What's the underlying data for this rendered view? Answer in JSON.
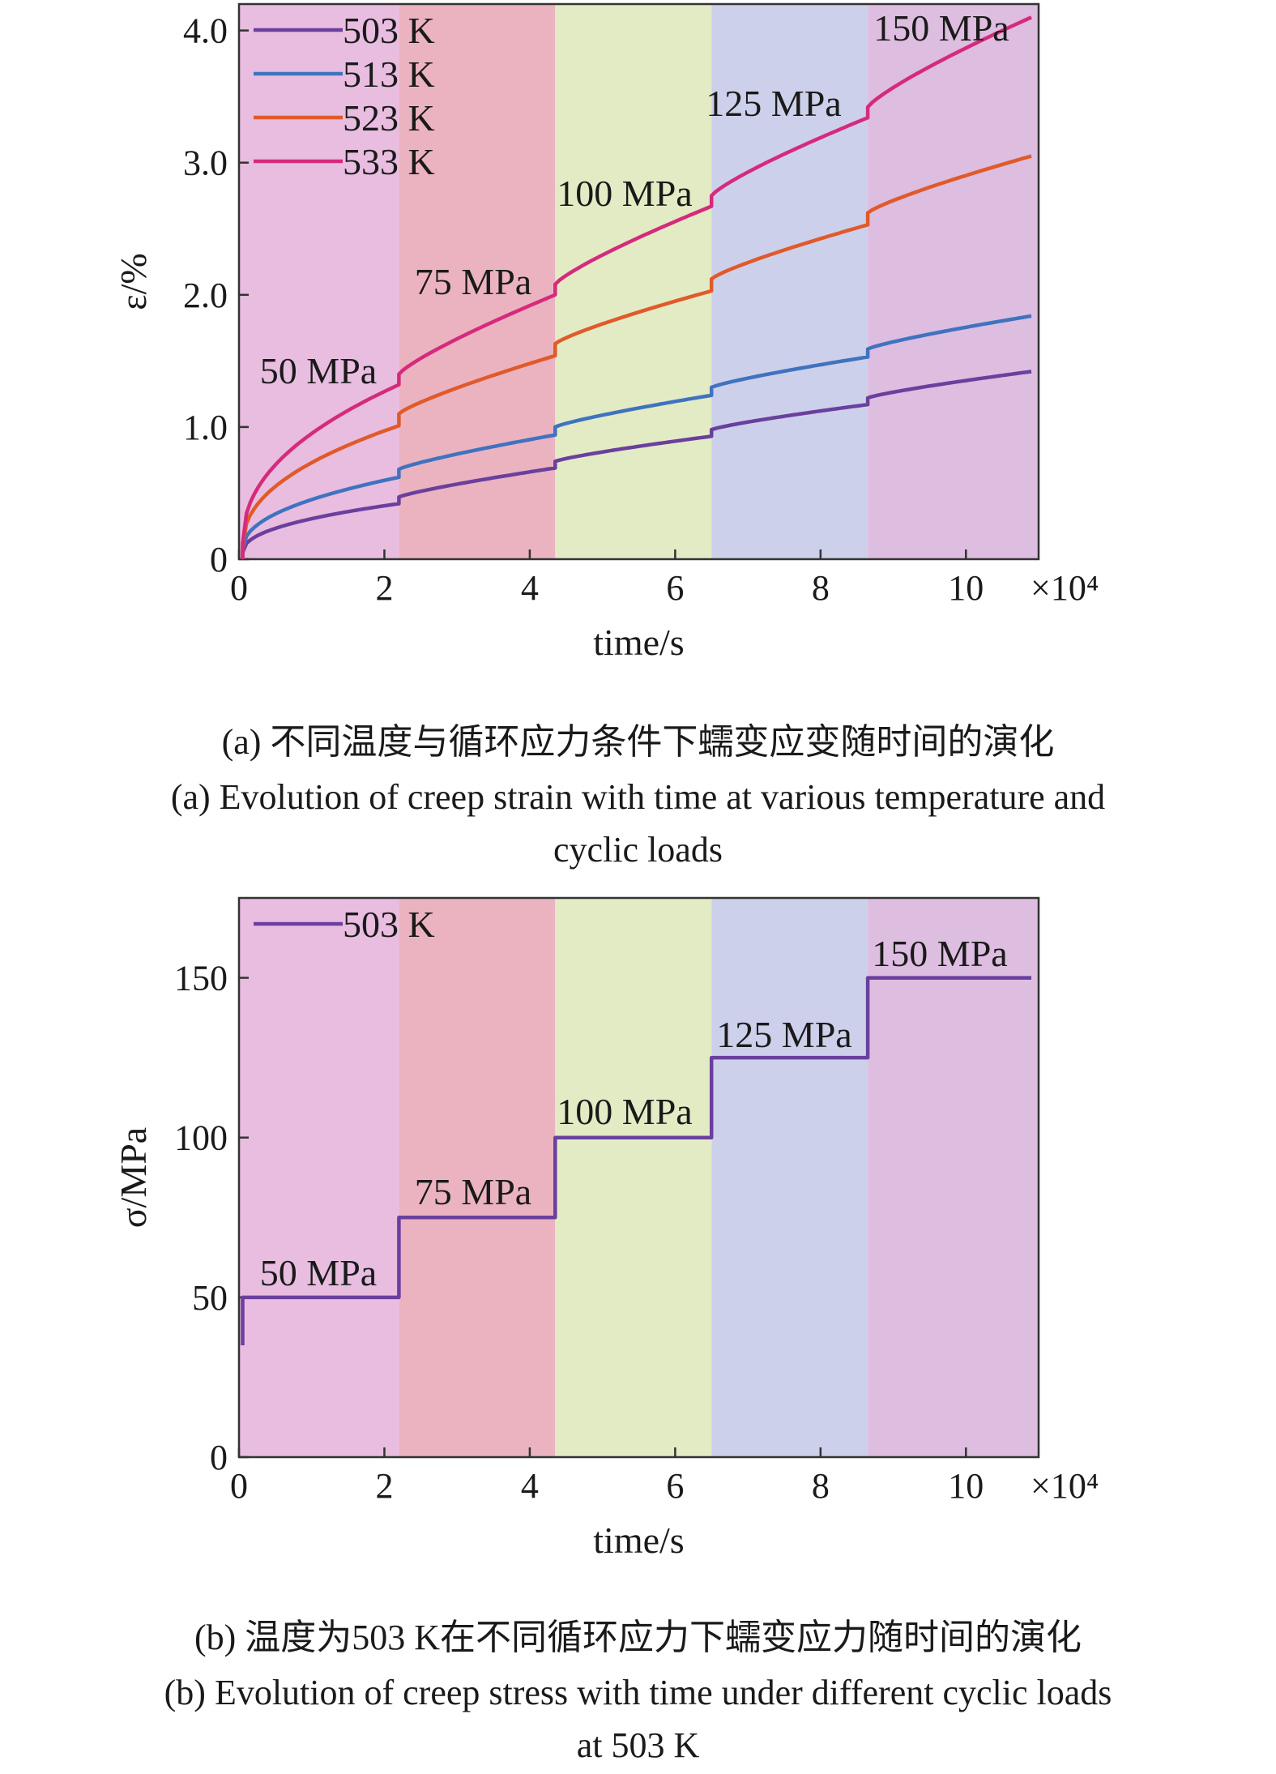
{
  "colors": {
    "band_1": "#e8bde0",
    "band_2": "#ebb3c0",
    "band_3": "#e3ebc4",
    "band_4": "#cdd0ea",
    "band_5": "#ddbde0",
    "series_503": "#6a3f9e",
    "series_513": "#3f73bf",
    "series_523": "#e05a2a",
    "series_533": "#d62a7c"
  },
  "chart_data": [
    {
      "type": "line",
      "ylabel": "ε/%",
      "xlabel": "time/s",
      "x_multiplier": "×10⁴",
      "xlim": [
        0,
        11
      ],
      "ylim": [
        0,
        4.2
      ],
      "xticks": [
        "0",
        "2",
        "4",
        "6",
        "8",
        "10"
      ],
      "yticks": [
        "0",
        "1.0",
        "2.0",
        "3.0",
        "4.0"
      ],
      "stage_bounds": [
        0,
        2.2,
        4.35,
        6.5,
        8.65,
        11
      ],
      "stage_labels": [
        "50 MPa",
        "75 MPa",
        "100 MPa",
        "125 MPa",
        "150 MPa"
      ],
      "legend": "top-left",
      "series": [
        {
          "name": "503 K",
          "color_key": "series_503",
          "stages": [
            {
              "start": 0.05,
              "end": 0.42
            },
            {
              "start": 0.47,
              "end": 0.69
            },
            {
              "start": 0.74,
              "end": 0.93
            },
            {
              "start": 0.98,
              "end": 1.17
            },
            {
              "start": 1.22,
              "end": 1.42
            }
          ]
        },
        {
          "name": "513 K",
          "color_key": "series_513",
          "stages": [
            {
              "start": 0.07,
              "end": 0.62
            },
            {
              "start": 0.68,
              "end": 0.94
            },
            {
              "start": 1.0,
              "end": 1.24
            },
            {
              "start": 1.3,
              "end": 1.53
            },
            {
              "start": 1.59,
              "end": 1.84
            }
          ]
        },
        {
          "name": "523 K",
          "color_key": "series_523",
          "stages": [
            {
              "start": 0.1,
              "end": 1.01
            },
            {
              "start": 1.1,
              "end": 1.54
            },
            {
              "start": 1.63,
              "end": 2.03
            },
            {
              "start": 2.12,
              "end": 2.53
            },
            {
              "start": 2.62,
              "end": 3.05
            }
          ]
        },
        {
          "name": "533 K",
          "color_key": "series_533",
          "stages": [
            {
              "start": 0.12,
              "end": 1.32
            },
            {
              "start": 1.4,
              "end": 2.0
            },
            {
              "start": 2.08,
              "end": 2.67
            },
            {
              "start": 2.75,
              "end": 3.34
            },
            {
              "start": 3.42,
              "end": 4.1
            }
          ]
        }
      ]
    },
    {
      "type": "line",
      "ylabel": "σ/MPa",
      "xlabel": "time/s",
      "x_multiplier": "×10⁴",
      "xlim": [
        0,
        11
      ],
      "ylim": [
        0,
        175
      ],
      "xticks": [
        "0",
        "2",
        "4",
        "6",
        "8",
        "10"
      ],
      "yticks": [
        "0",
        "50",
        "100",
        "150"
      ],
      "stage_bounds": [
        0,
        2.2,
        4.35,
        6.5,
        8.65,
        11
      ],
      "stage_labels": [
        "50 MPa",
        "75 MPa",
        "100 MPa",
        "125 MPa",
        "150 MPa"
      ],
      "legend": "top-left",
      "series": [
        {
          "name": "503 K",
          "color_key": "series_503",
          "x": [
            0.05,
            0.05,
            0.05,
            2.2,
            2.2,
            4.35,
            4.35,
            6.5,
            6.5,
            8.65,
            8.65,
            10.9
          ],
          "y": [
            35,
            48,
            50,
            50,
            75,
            75,
            100,
            100,
            125,
            125,
            150,
            150
          ]
        }
      ]
    }
  ],
  "captions": {
    "a_cn": "(a) 不同温度与循环应力条件下蠕变应变随时间的演化",
    "a_en_1": "(a) Evolution of creep strain with time at various temperature and",
    "a_en_2": "cyclic loads",
    "b_cn": "(b) 温度为503 K在不同循环应力下蠕变应力随时间的演化",
    "b_en_1": "(b) Evolution of creep stress with time under different cyclic loads",
    "b_en_2": "at 503 K"
  }
}
